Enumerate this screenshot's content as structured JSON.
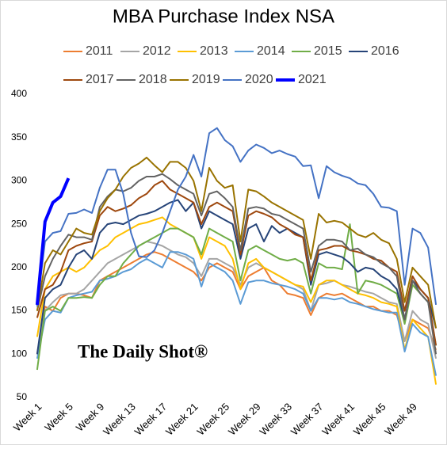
{
  "chart_data": {
    "type": "line",
    "title": "MBA Purchase Index NSA",
    "watermark": "The Daily Shot®",
    "categories": [
      "Week 1",
      null,
      null,
      null,
      "Week 5",
      null,
      null,
      null,
      "Week 9",
      null,
      null,
      null,
      "Week 13",
      null,
      null,
      null,
      "Week 17",
      null,
      null,
      null,
      "Week 21",
      null,
      null,
      null,
      "Week 25",
      null,
      null,
      null,
      "Week 29",
      null,
      null,
      null,
      "Week 33",
      null,
      null,
      null,
      "Week 37",
      null,
      null,
      null,
      "Week 41",
      null,
      null,
      null,
      "Week 45",
      null,
      null,
      null,
      "Week 49",
      null,
      null,
      null
    ],
    "ylim": [
      50,
      400
    ],
    "yticks": [
      50,
      100,
      150,
      200,
      250,
      300,
      350,
      400
    ],
    "grid": false,
    "series": [
      {
        "name": "2011",
        "color": "#ed7d31",
        "values": [
          100,
          155,
          150,
          165,
          170,
          170,
          168,
          165,
          185,
          190,
          195,
          200,
          205,
          210,
          215,
          218,
          215,
          210,
          205,
          200,
          195,
          185,
          200,
          205,
          200,
          195,
          175,
          190,
          195,
          200,
          185,
          180,
          170,
          168,
          165,
          145,
          165,
          170,
          168,
          170,
          165,
          160,
          155,
          155,
          150,
          150,
          145,
          115,
          140,
          135,
          130,
          105
        ]
      },
      {
        "name": "2012",
        "color": "#a5a5a5",
        "values": [
          100,
          150,
          160,
          168,
          170,
          170,
          175,
          185,
          195,
          205,
          210,
          215,
          220,
          225,
          230,
          228,
          225,
          220,
          215,
          212,
          205,
          190,
          210,
          210,
          205,
          200,
          180,
          200,
          205,
          200,
          195,
          190,
          185,
          180,
          175,
          150,
          180,
          182,
          185,
          180,
          178,
          175,
          172,
          170,
          165,
          160,
          158,
          115,
          150,
          140,
          135,
          95
        ]
      },
      {
        "name": "2013",
        "color": "#ffc000",
        "values": [
          120,
          175,
          190,
          195,
          200,
          195,
          200,
          210,
          220,
          225,
          235,
          240,
          245,
          250,
          252,
          255,
          258,
          250,
          245,
          240,
          235,
          210,
          235,
          230,
          225,
          210,
          175,
          205,
          210,
          200,
          195,
          190,
          185,
          180,
          178,
          160,
          180,
          185,
          185,
          180,
          175,
          170,
          168,
          165,
          160,
          158,
          155,
          105,
          140,
          130,
          120,
          65
        ]
      },
      {
        "name": "2014",
        "color": "#5b9bd5",
        "values": [
          95,
          140,
          150,
          148,
          165,
          168,
          170,
          172,
          185,
          187,
          190,
          195,
          198,
          205,
          210,
          205,
          200,
          218,
          218,
          215,
          210,
          178,
          205,
          200,
          195,
          185,
          158,
          183,
          185,
          185,
          182,
          180,
          178,
          175,
          170,
          150,
          165,
          165,
          163,
          165,
          160,
          158,
          155,
          152,
          150,
          148,
          148,
          103,
          135,
          125,
          120,
          75
        ]
      },
      {
        "name": "2015",
        "color": "#70ad47",
        "values": [
          82,
          150,
          155,
          150,
          165,
          165,
          166,
          165,
          180,
          190,
          190,
          205,
          215,
          225,
          230,
          235,
          240,
          245,
          245,
          240,
          235,
          215,
          245,
          240,
          235,
          230,
          185,
          220,
          225,
          220,
          215,
          210,
          208,
          210,
          205,
          170,
          205,
          200,
          200,
          198,
          250,
          170,
          185,
          183,
          180,
          175,
          170,
          135,
          180,
          170,
          160,
          110
        ]
      },
      {
        "name": "2016",
        "color": "#264478",
        "values": [
          100,
          165,
          175,
          180,
          200,
          215,
          220,
          210,
          240,
          250,
          252,
          250,
          255,
          260,
          262,
          265,
          270,
          275,
          278,
          265,
          275,
          245,
          265,
          260,
          255,
          250,
          210,
          245,
          250,
          230,
          248,
          240,
          245,
          240,
          235,
          180,
          215,
          218,
          215,
          212,
          205,
          195,
          200,
          198,
          190,
          185,
          175,
          140,
          185,
          175,
          165,
          130
        ]
      },
      {
        "name": "2017",
        "color": "#9e480e",
        "values": [
          142,
          175,
          180,
          195,
          220,
          225,
          228,
          230,
          260,
          270,
          265,
          268,
          272,
          280,
          285,
          295,
          300,
          290,
          285,
          280,
          275,
          250,
          270,
          275,
          270,
          265,
          215,
          260,
          265,
          262,
          258,
          250,
          245,
          238,
          235,
          185,
          220,
          222,
          225,
          225,
          220,
          218,
          215,
          210,
          208,
          200,
          195,
          150,
          190,
          175,
          165,
          110
        ]
      },
      {
        "name": "2018",
        "color": "#636363",
        "values": [
          150,
          190,
          210,
          225,
          238,
          235,
          235,
          232,
          270,
          282,
          290,
          288,
          292,
          300,
          305,
          305,
          308,
          302,
          295,
          290,
          285,
          260,
          285,
          288,
          280,
          270,
          220,
          268,
          270,
          268,
          262,
          260,
          255,
          250,
          245,
          195,
          225,
          232,
          232,
          230,
          220,
          222,
          215,
          212,
          205,
          200,
          190,
          140,
          185,
          170,
          160,
          100
        ]
      },
      {
        "name": "2019",
        "color": "#997300",
        "values": [
          150,
          205,
          220,
          215,
          230,
          245,
          240,
          238,
          265,
          280,
          290,
          305,
          315,
          320,
          327,
          318,
          310,
          322,
          322,
          315,
          300,
          265,
          315,
          300,
          292,
          295,
          230,
          290,
          288,
          282,
          275,
          270,
          265,
          260,
          255,
          210,
          262,
          252,
          254,
          252,
          245,
          238,
          235,
          240,
          232,
          228,
          210,
          160,
          200,
          190,
          180,
          130
        ]
      },
      {
        "name": "2020",
        "color": "#4472c4",
        "values": [
          155,
          230,
          240,
          242,
          262,
          263,
          267,
          263,
          292,
          313,
          313,
          285,
          240,
          213,
          212,
          220,
          240,
          265,
          290,
          305,
          330,
          305,
          355,
          361,
          347,
          340,
          322,
          335,
          342,
          338,
          332,
          335,
          331,
          328,
          317,
          318,
          280,
          317,
          310,
          306,
          303,
          297,
          295,
          285,
          270,
          269,
          265,
          180,
          245,
          240,
          223,
          157
        ]
      },
      {
        "name": "2021",
        "color": "#0000ff",
        "values": [
          157,
          253,
          275,
          282,
          303,
          null,
          null,
          null,
          null,
          null,
          null,
          null,
          null,
          null,
          null,
          null,
          null,
          null,
          null,
          null,
          null,
          null,
          null,
          null,
          null,
          null,
          null,
          null,
          null,
          null,
          null,
          null,
          null,
          null,
          null,
          null,
          null,
          null,
          null,
          null,
          null,
          null,
          null,
          null,
          null,
          null,
          null,
          null,
          null,
          null,
          null,
          null
        ]
      }
    ]
  }
}
